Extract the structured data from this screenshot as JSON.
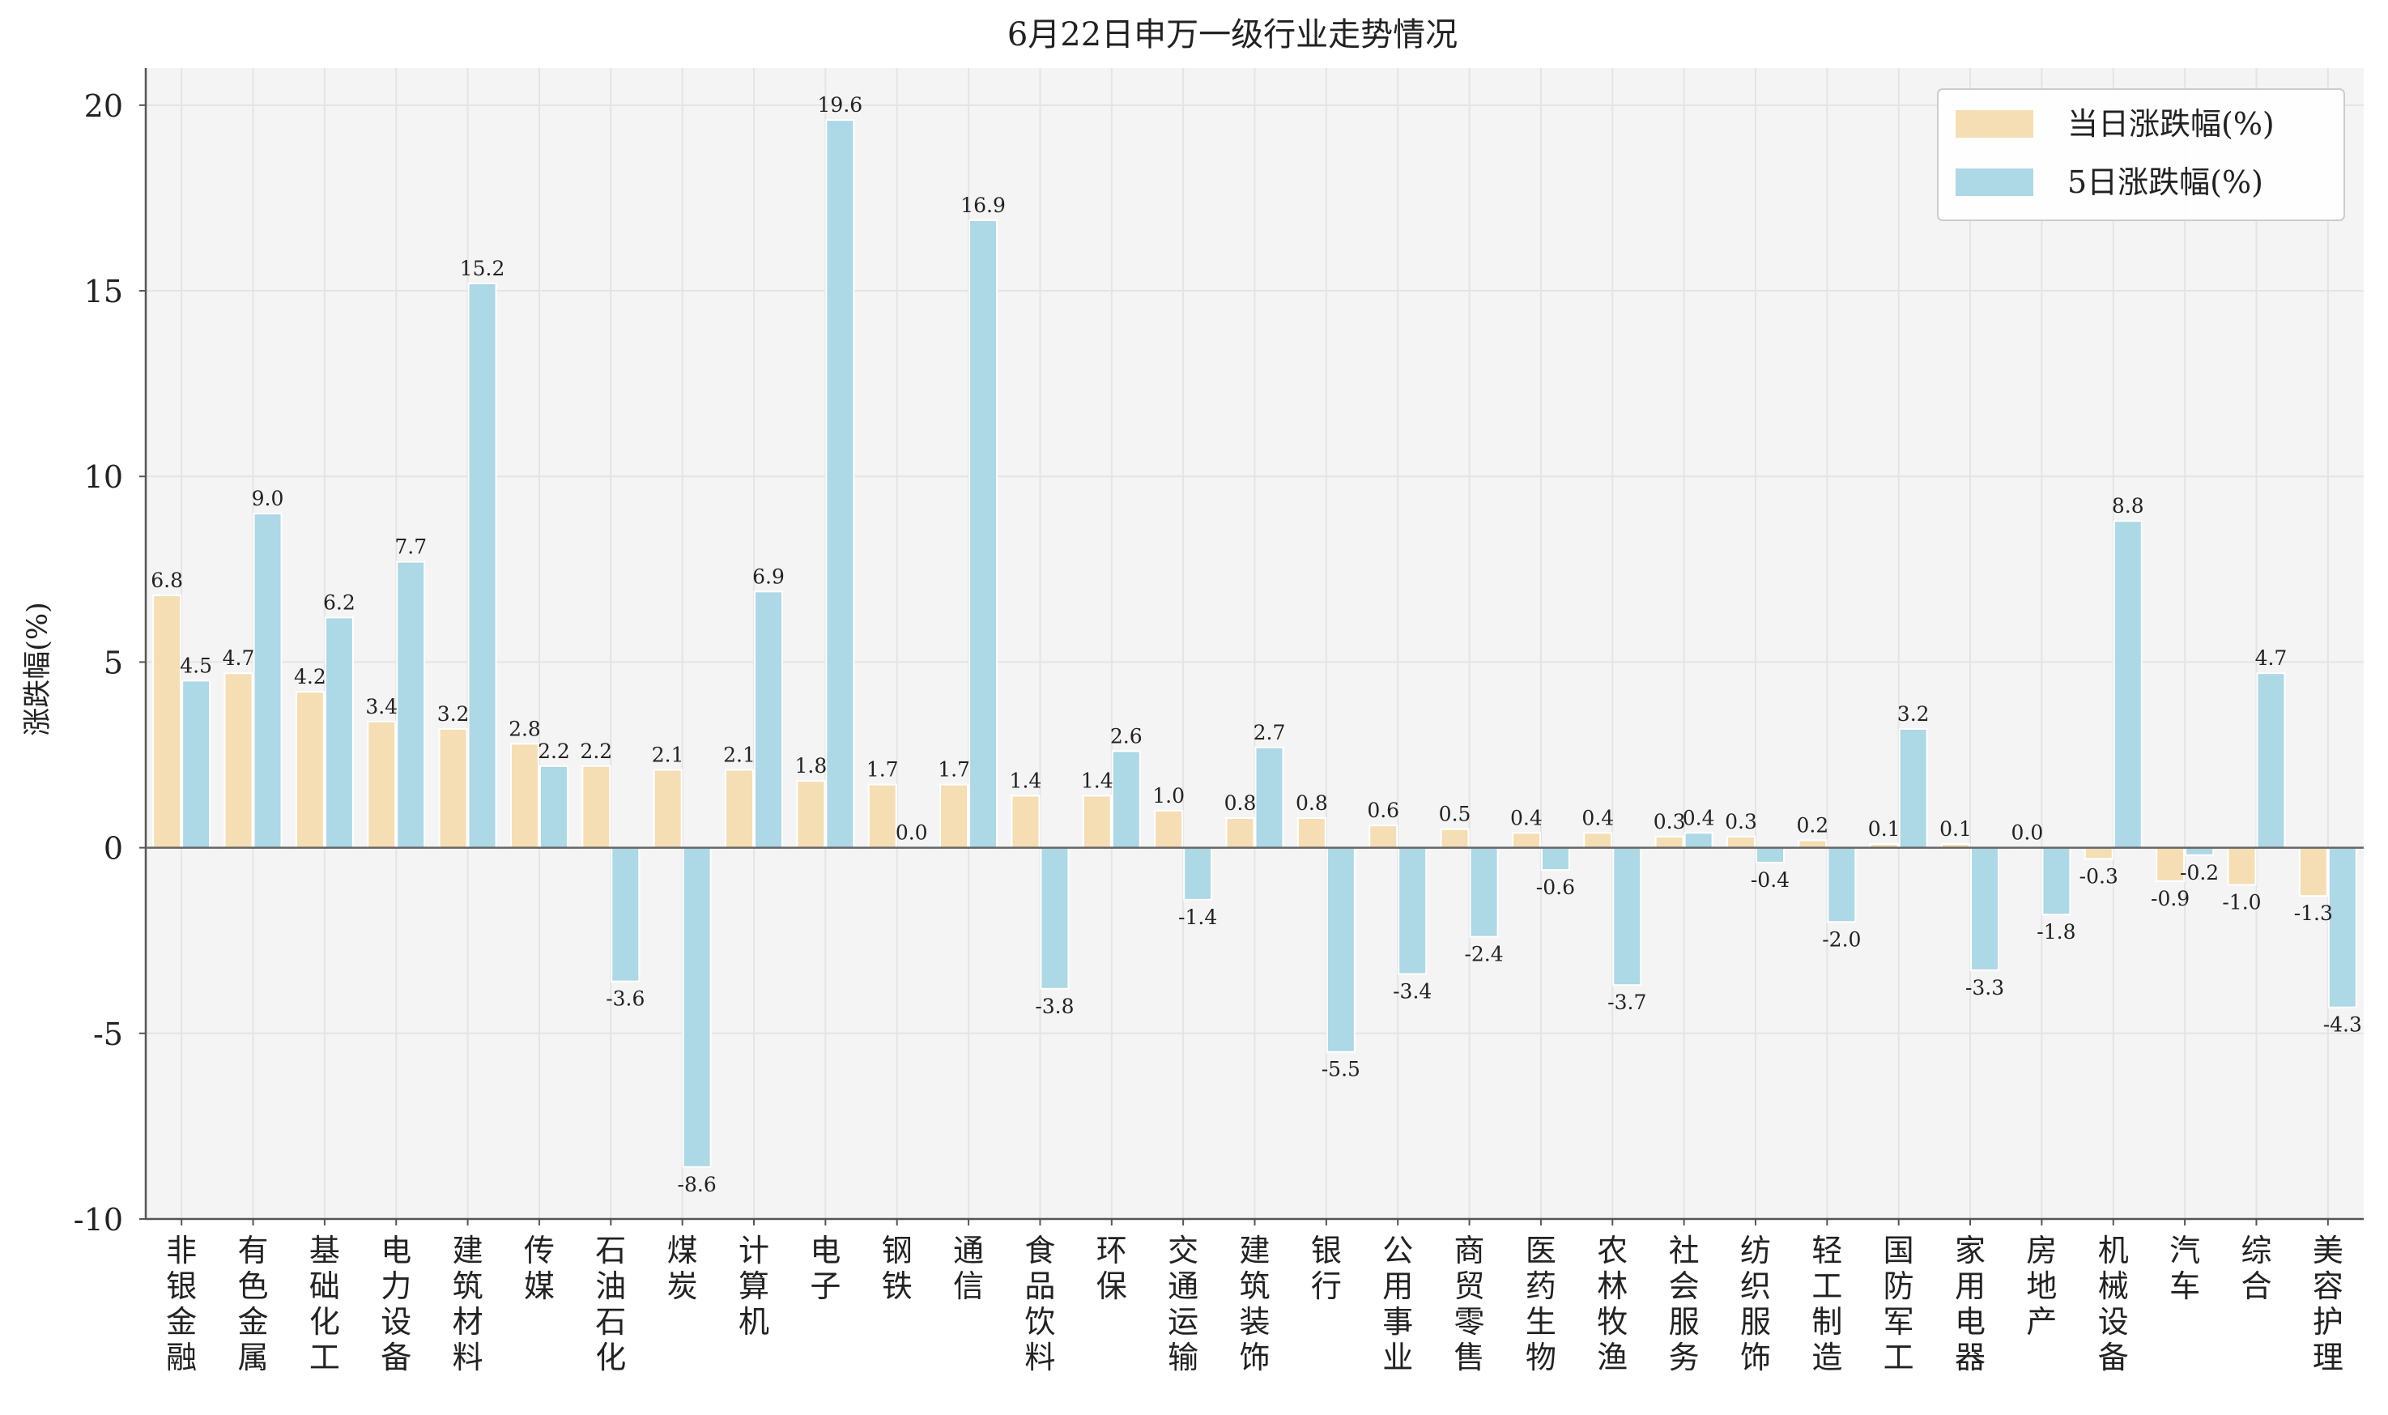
{
  "chart_data": {
    "type": "bar",
    "title": "6月22日申万一级行业走势情况",
    "xlabel": "",
    "ylabel": "涨跌幅(%)",
    "ylim": [
      -10,
      21
    ],
    "yticks": [
      -10,
      -5,
      0,
      5,
      10,
      15,
      20
    ],
    "ytick_labels": [
      "-10",
      "-5",
      "0",
      "5",
      "10",
      "15",
      "20"
    ],
    "grid": true,
    "legend_position": "top-right",
    "categories": [
      "非银金融",
      "有色金属",
      "基础化工",
      "电力设备",
      "建筑材料",
      "传媒",
      "石油石化",
      "煤炭",
      "计算机",
      "电子",
      "钢铁",
      "通信",
      "食品饮料",
      "环保",
      "交通运输",
      "建筑装饰",
      "银行",
      "公用事业",
      "商贸零售",
      "医药生物",
      "农林牧渔",
      "社会服务",
      "纺织服饰",
      "轻工制造",
      "国防军工",
      "家用电器",
      "房地产",
      "机械设备",
      "汽车",
      "综合",
      "美容护理"
    ],
    "series": [
      {
        "name": "当日涨跌幅(%)",
        "color": "#f5deb3",
        "values": [
          6.8,
          4.7,
          4.2,
          3.4,
          3.2,
          2.8,
          2.2,
          2.1,
          2.1,
          1.8,
          1.7,
          1.7,
          1.4,
          1.4,
          1.0,
          0.8,
          0.8,
          0.6,
          0.5,
          0.4,
          0.4,
          0.3,
          0.3,
          0.2,
          0.1,
          0.1,
          0.0,
          -0.3,
          -0.9,
          -1.0,
          -1.3
        ],
        "labels": [
          "6.8",
          "4.7",
          "4.2",
          "3.4",
          "3.2",
          "2.8",
          "2.2",
          "2.1",
          "2.1",
          "1.8",
          "1.7",
          "1.7",
          "1.4",
          "1.4",
          "1.0",
          "0.8",
          "0.8",
          "0.6",
          "0.5",
          "0.4",
          "0.4",
          "0.3",
          "0.3",
          "0.2",
          "0.1",
          "0.1",
          "0.0",
          "-0.3",
          "-0.9",
          "-1.0",
          "-1.3"
        ]
      },
      {
        "name": "5日涨跌幅(%)",
        "color": "#add8e6",
        "values": [
          4.5,
          9.0,
          6.2,
          7.7,
          15.2,
          2.2,
          -3.6,
          -8.6,
          6.9,
          19.6,
          0.0,
          16.9,
          -3.8,
          2.6,
          -1.4,
          2.7,
          -5.5,
          -3.4,
          -2.4,
          -0.6,
          -3.7,
          0.4,
          -0.4,
          -2.0,
          3.2,
          -3.3,
          -1.8,
          8.8,
          -0.2,
          4.7,
          -4.3
        ],
        "labels": [
          "4.5",
          "9.0",
          "6.2",
          "7.7",
          "15.2",
          "2.2",
          "-3.6",
          "-8.6",
          "6.9",
          "19.6",
          "0.0",
          "16.9",
          "-3.8",
          "2.6",
          "-1.4",
          "2.7",
          "-5.5",
          "-3.4",
          "-2.4",
          "-0.6",
          "-3.7",
          "0.4",
          "-0.4",
          "-2.0",
          "3.2",
          "-3.3",
          "-1.8",
          "8.8",
          "-0.2",
          "4.7",
          "-4.3"
        ]
      }
    ],
    "style": {
      "plot_background": "#f4f4f4",
      "grid_color": "#e4e4e4",
      "axis_color": "#555555",
      "zero_line_color": "#666666"
    }
  }
}
